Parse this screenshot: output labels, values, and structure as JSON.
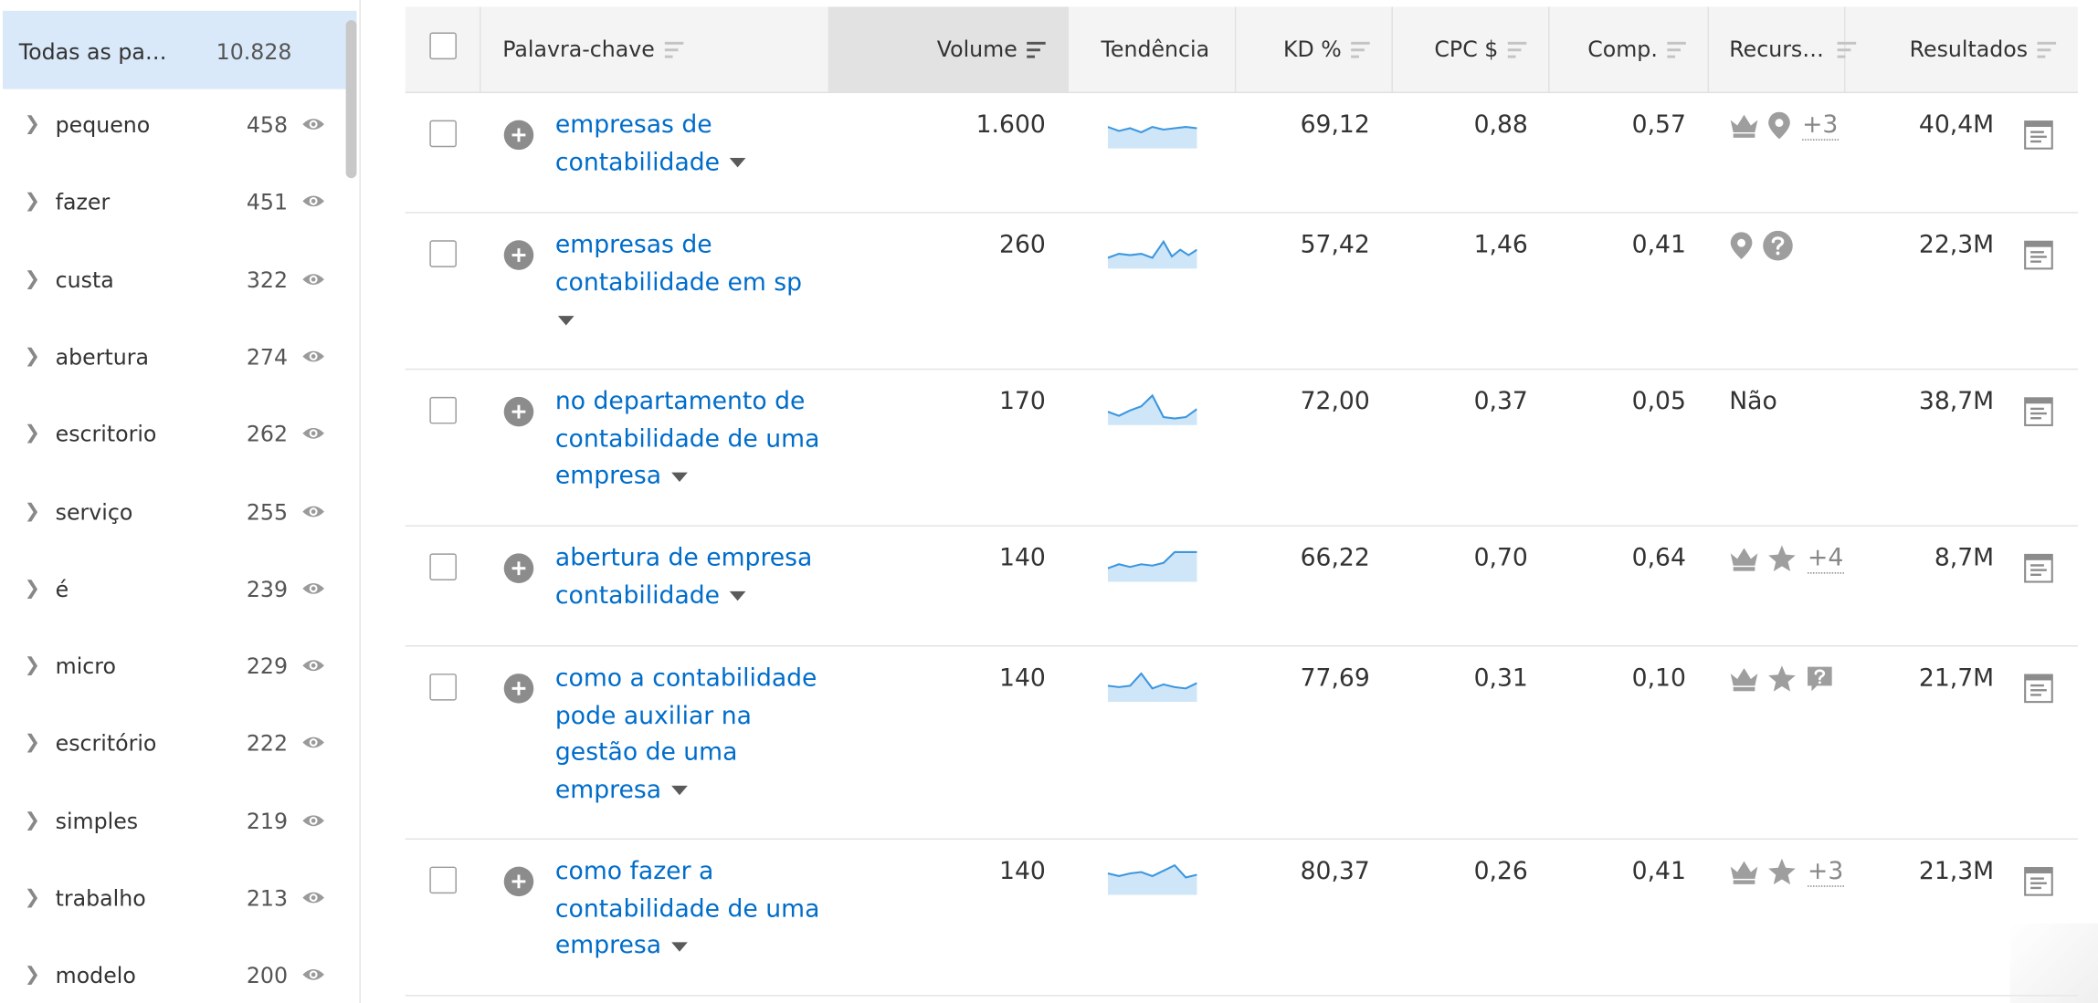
{
  "sidebar": {
    "all": {
      "label": "Todas as pa…",
      "count": "10.828"
    },
    "items": [
      {
        "label": "pequeno",
        "count": "458"
      },
      {
        "label": "fazer",
        "count": "451"
      },
      {
        "label": "custa",
        "count": "322"
      },
      {
        "label": "abertura",
        "count": "274"
      },
      {
        "label": "escritorio",
        "count": "262"
      },
      {
        "label": "serviço",
        "count": "255"
      },
      {
        "label": "é",
        "count": "239"
      },
      {
        "label": "micro",
        "count": "229"
      },
      {
        "label": "escritório",
        "count": "222"
      },
      {
        "label": "simples",
        "count": "219"
      },
      {
        "label": "trabalho",
        "count": "213"
      },
      {
        "label": "modelo",
        "count": "200"
      }
    ]
  },
  "table": {
    "headers": {
      "keyword": "Palavra-chave",
      "volume": "Volume",
      "trend": "Tendência",
      "kd": "KD %",
      "cpc": "CPC $",
      "comp": "Comp.",
      "features": "Recurs…",
      "results": "Resultados"
    },
    "rows": [
      {
        "kw_lines": [
          "empresas de",
          "contabilidade"
        ],
        "volume": "1.600",
        "kd": "69,12",
        "cpc": "0,88",
        "comp": "0,57",
        "results": "40,4M",
        "features_more": "+3"
      },
      {
        "kw_lines": [
          "empresas de",
          "contabilidade em sp"
        ],
        "volume": "260",
        "kd": "57,42",
        "cpc": "1,46",
        "comp": "0,41",
        "results": "22,3M",
        "features_more": ""
      },
      {
        "kw_lines": [
          "no departamento de",
          "contabilidade de uma",
          "empresa"
        ],
        "volume": "170",
        "kd": "72,00",
        "cpc": "0,37",
        "comp": "0,05",
        "results": "38,7M",
        "features_text": "Não"
      },
      {
        "kw_lines": [
          "abertura de empresa",
          "contabilidade"
        ],
        "volume": "140",
        "kd": "66,22",
        "cpc": "0,70",
        "comp": "0,64",
        "results": "8,7M",
        "features_more": "+4"
      },
      {
        "kw_lines": [
          "como a contabilidade",
          "pode auxiliar na",
          "gestão de uma",
          "empresa"
        ],
        "volume": "140",
        "kd": "77,69",
        "cpc": "0,31",
        "comp": "0,10",
        "results": "21,7M",
        "features_more": ""
      },
      {
        "kw_lines": [
          "como fazer a",
          "contabilidade de uma",
          "empresa"
        ],
        "volume": "140",
        "kd": "80,37",
        "cpc": "0,26",
        "comp": "0,41",
        "results": "21,3M",
        "features_more": "+3"
      }
    ]
  },
  "colors": {
    "link": "#006dca",
    "trend": "#3d97df",
    "trend_fill": "#cfe6f8",
    "selected": "#d9e9f9"
  }
}
